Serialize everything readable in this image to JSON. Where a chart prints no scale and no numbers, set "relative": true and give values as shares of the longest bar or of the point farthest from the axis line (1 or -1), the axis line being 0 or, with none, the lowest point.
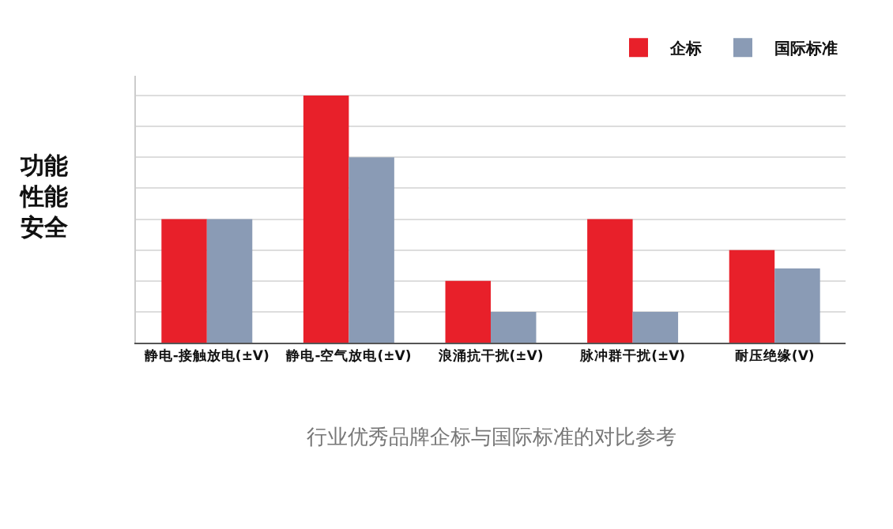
{
  "chart_data": {
    "type": "bar",
    "relative": true,
    "categories": [
      "静电-接触放电(±V)",
      "静电-空气放电(±V)",
      "浪涌抗干扰(±V)",
      "脉冲群干扰(±V)",
      "耐压绝缘(V)"
    ],
    "series": [
      {
        "name": "企标",
        "color": "#e8202a",
        "values": [
          0.5,
          1,
          0.25,
          0.5,
          0.375
        ]
      },
      {
        "name": "国际标准",
        "color": "#8a9bb5",
        "values": [
          0.5,
          0.75,
          0.125,
          0.125,
          0.3
        ]
      }
    ],
    "ylabel": "功能性能安全",
    "annotations": [
      "行业优秀品牌企标与国际标准的对比参考"
    ],
    "grid": "y",
    "legend": "top right"
  }
}
